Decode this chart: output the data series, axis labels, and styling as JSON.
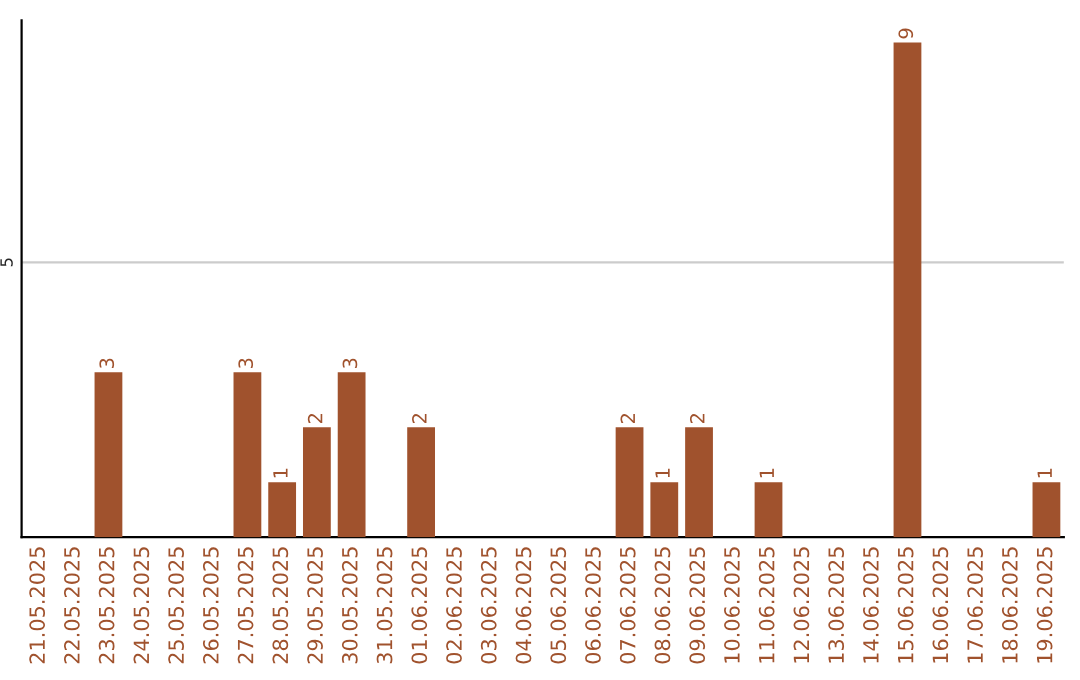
{
  "chart_data": {
    "type": "bar",
    "categories": [
      "21.05.2025",
      "22.05.2025",
      "23.05.2025",
      "24.05.2025",
      "25.05.2025",
      "26.05.2025",
      "27.05.2025",
      "28.05.2025",
      "29.05.2025",
      "30.05.2025",
      "31.05.2025",
      "01.06.2025",
      "02.06.2025",
      "03.06.2025",
      "04.06.2025",
      "05.06.2025",
      "06.06.2025",
      "07.06.2025",
      "08.06.2025",
      "09.06.2025",
      "10.06.2025",
      "11.06.2025",
      "12.06.2025",
      "13.06.2025",
      "14.06.2025",
      "15.06.2025",
      "16.06.2025",
      "17.06.2025",
      "18.06.2025",
      "19.06.2025"
    ],
    "values": [
      0,
      0,
      3,
      0,
      0,
      0,
      3,
      1,
      2,
      3,
      0,
      2,
      0,
      0,
      0,
      0,
      0,
      2,
      1,
      2,
      0,
      1,
      0,
      0,
      0,
      9,
      0,
      0,
      0,
      1
    ],
    "value_labels": [
      null,
      null,
      "3",
      null,
      null,
      null,
      "3",
      "1",
      "2",
      "3",
      null,
      "2",
      null,
      null,
      null,
      null,
      null,
      "2",
      "1",
      "2",
      null,
      "1",
      null,
      null,
      null,
      "9",
      null,
      null,
      null,
      "1"
    ],
    "color": "#a0522d",
    "ylim": [
      0,
      9.4
    ],
    "yticks": [
      5
    ],
    "grid": "y"
  }
}
